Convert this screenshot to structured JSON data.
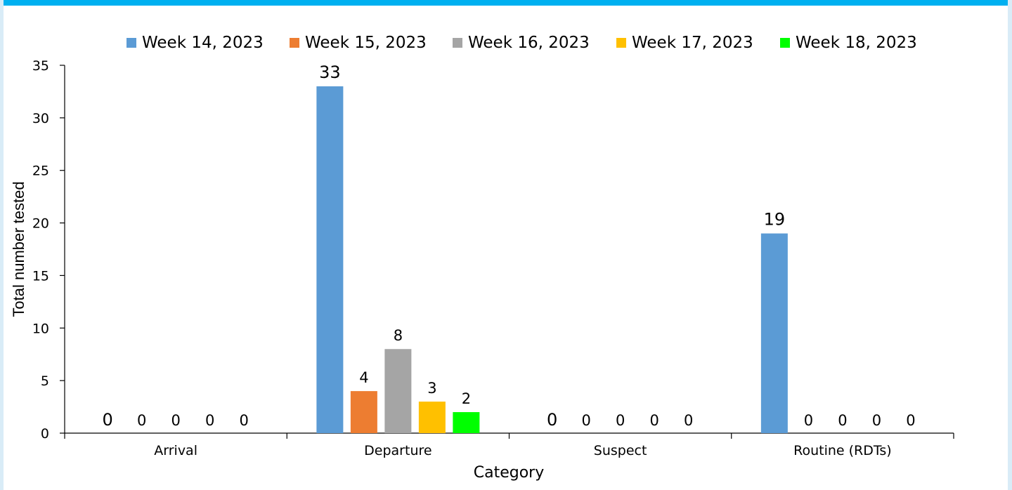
{
  "chart_data": {
    "type": "bar",
    "title": "",
    "xlabel": "Category",
    "ylabel": "Total number tested",
    "categories": [
      "Arrival",
      "Departure",
      "Suspect",
      "Routine (RDTs)"
    ],
    "series": [
      {
        "name": "Week 14, 2023",
        "color": "#5b9bd5",
        "values": [
          0,
          33,
          0,
          19
        ]
      },
      {
        "name": "Week 15, 2023",
        "color": "#ed7d31",
        "values": [
          0,
          4,
          0,
          0
        ]
      },
      {
        "name": "Week 16, 2023",
        "color": "#a5a5a5",
        "values": [
          0,
          8,
          0,
          0
        ]
      },
      {
        "name": "Week 17, 2023",
        "color": "#ffc000",
        "values": [
          0,
          3,
          0,
          0
        ]
      },
      {
        "name": "Week 18, 2023",
        "color": "#00ff00",
        "values": [
          0,
          2,
          0,
          0
        ]
      }
    ],
    "ylim": [
      0,
      35
    ],
    "yticks": [
      0,
      5,
      10,
      15,
      20,
      25,
      30,
      35
    ],
    "grid": false,
    "legend_position": "top",
    "data_labels": true
  }
}
